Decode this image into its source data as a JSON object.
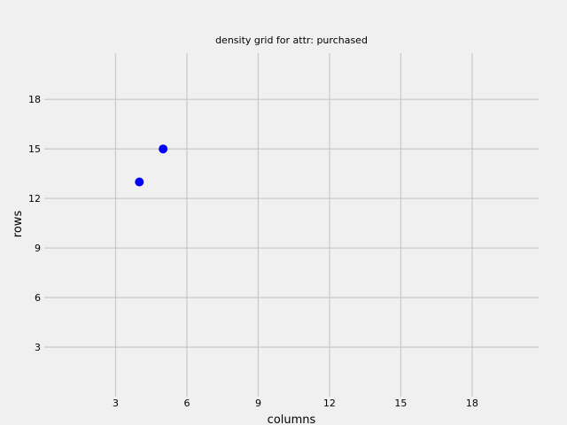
{
  "chart_data": {
    "type": "scatter",
    "title": "density grid for attr: purchased",
    "xlabel": "columns",
    "ylabel": "rows",
    "xlim": [
      0,
      20.8
    ],
    "ylim": [
      0,
      20.8
    ],
    "xticks": [
      3,
      6,
      9,
      12,
      15,
      18
    ],
    "yticks": [
      3,
      6,
      9,
      12,
      15,
      18
    ],
    "grid": true,
    "points": [
      {
        "x": 4,
        "y": 13
      },
      {
        "x": 5,
        "y": 15
      }
    ],
    "colors": {
      "background": "#f0f0f0",
      "grid": "#cbcbcb",
      "marker": "#0000ff"
    }
  }
}
